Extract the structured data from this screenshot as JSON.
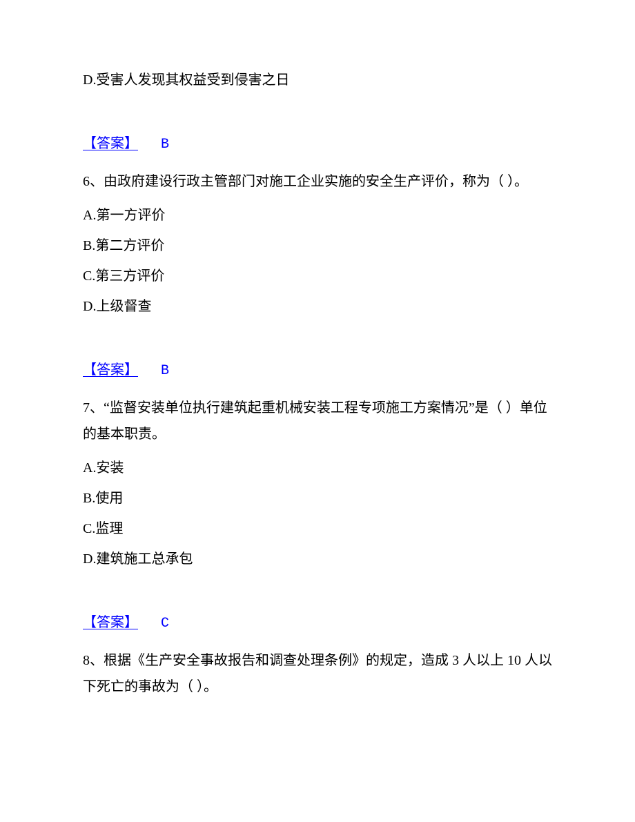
{
  "q5": {
    "option_d": "D.受害人发现其权益受到侵害之日",
    "answer_label": "【答案】",
    "answer_value": "B"
  },
  "q6": {
    "number": "6、",
    "text": "由政府建设行政主管部门对施工企业实施的安全生产评价，称为（ ）。",
    "option_a": "A.第一方评价",
    "option_b": "B.第二方评价",
    "option_c": "C.第三方评价",
    "option_d": "D.上级督查",
    "answer_label": "【答案】",
    "answer_value": "B"
  },
  "q7": {
    "number": "7、",
    "text": "“监督安装单位执行建筑起重机械安装工程专项施工方案情况”是（ ）单位的基本职责。",
    "option_a": "A.安装",
    "option_b": "B.使用",
    "option_c": "C.监理",
    "option_d": "D.建筑施工总承包",
    "answer_label": "【答案】",
    "answer_value": "C"
  },
  "q8": {
    "number": "8、",
    "text": "根据《生产安全事故报告和调查处理条例》的规定，造成 3 人以上 10 人以下死亡的事故为（ ）。"
  }
}
